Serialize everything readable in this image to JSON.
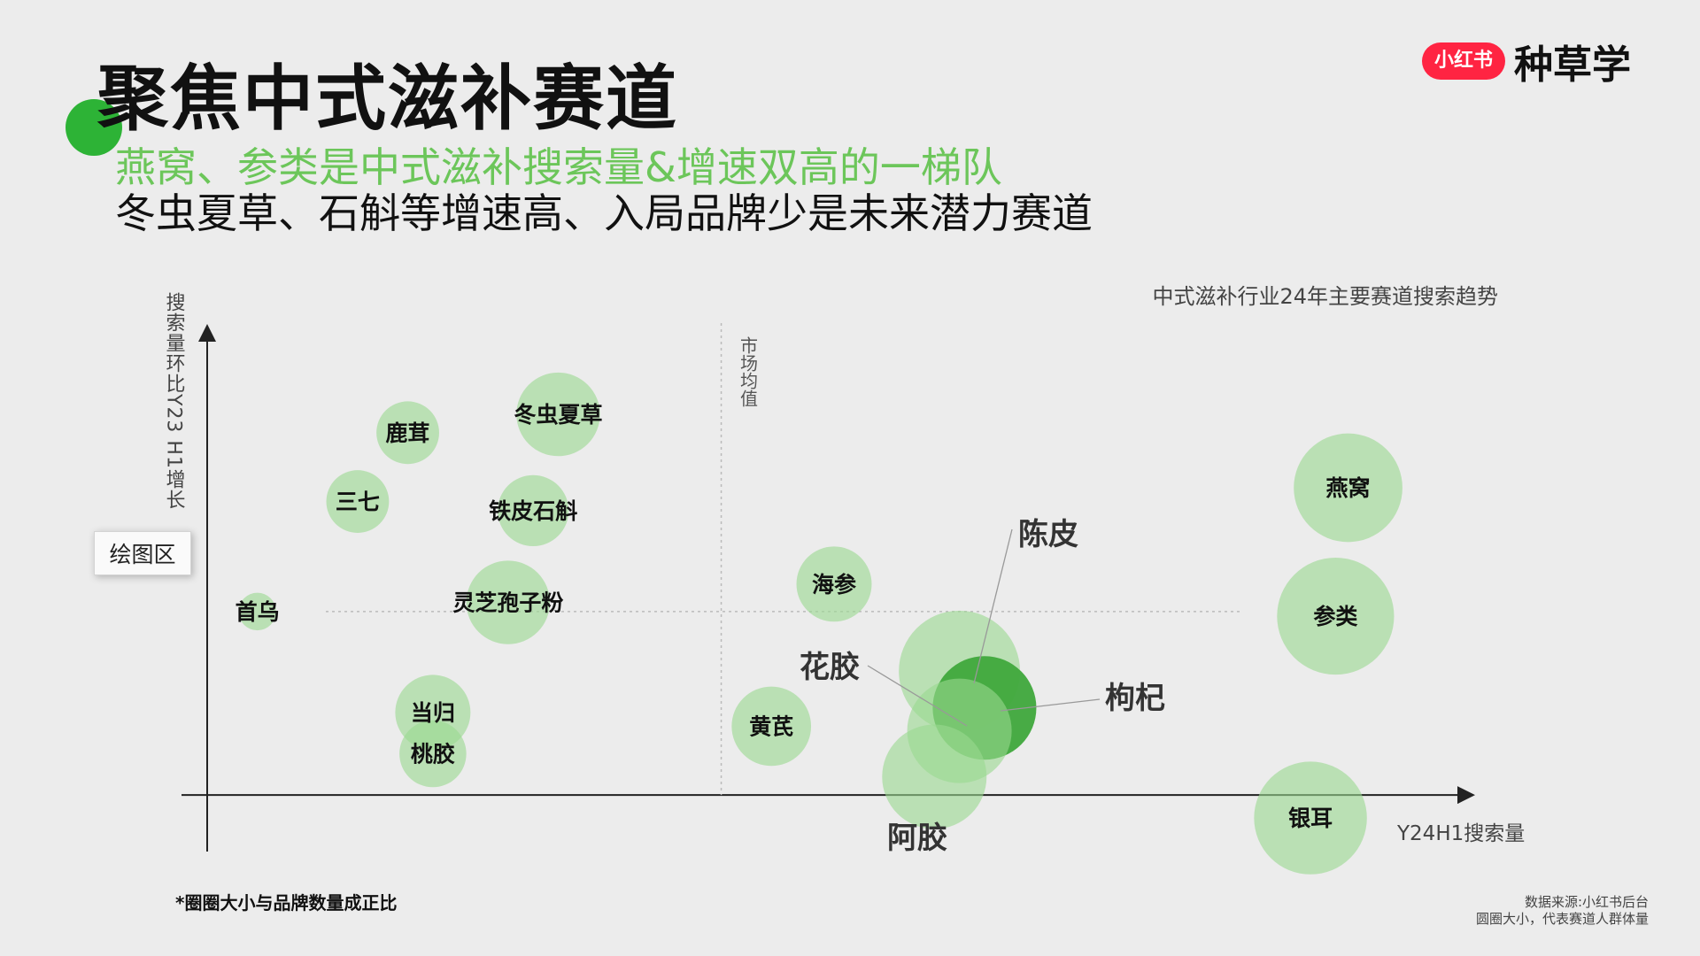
{
  "header": {
    "title": "聚焦中式滋补赛道",
    "subtitle_green": "燕窝、参类是中式滋补搜索量&增速双高的一梯队",
    "subtitle_black": "冬虫夏草、石斛等增速高、入局品牌少是未来潜力赛道"
  },
  "logo": {
    "badge": "小红书",
    "text": "种草学"
  },
  "plot_area_label": "绘图区",
  "footnote": "*圈圈大小与品牌数量成正比",
  "source_lines": [
    "数据来源:小红书后台",
    "圆圈大小，代表赛道人群体量"
  ],
  "colors": {
    "accent": "#2db336",
    "bubble": "#9ad98f",
    "bubble_dark": "#3fa83c",
    "axis": "#222222"
  },
  "chart_data": {
    "type": "scatter",
    "title": "中式滋补行业24年主要赛道搜索趋势",
    "xlabel": "Y24H1搜索量",
    "ylabel": "搜索量环比Y23 H1增长",
    "reference_line_label": "市场均值",
    "grid": false,
    "xlim": [
      0,
      100
    ],
    "ylim": [
      -10,
      100
    ],
    "ref_x": 41,
    "ref_y": 40,
    "points": [
      {
        "label": "鹿茸",
        "x": 16,
        "y": 79,
        "size": 30
      },
      {
        "label": "冬虫夏草",
        "x": 28,
        "y": 83,
        "size": 40
      },
      {
        "label": "三七",
        "x": 12,
        "y": 64,
        "size": 30
      },
      {
        "label": "铁皮石斛",
        "x": 26,
        "y": 62,
        "size": 34
      },
      {
        "label": "灵芝孢子粉",
        "x": 24,
        "y": 42,
        "size": 40
      },
      {
        "label": "首乌",
        "x": 4,
        "y": 40,
        "size": 18
      },
      {
        "label": "当归",
        "x": 18,
        "y": 18,
        "size": 36
      },
      {
        "label": "桃胶",
        "x": 18,
        "y": 9,
        "size": 32
      },
      {
        "label": "海参",
        "x": 50,
        "y": 46,
        "size": 36
      },
      {
        "label": "黄芪",
        "x": 45,
        "y": 15,
        "size": 38
      },
      {
        "label": "陈皮",
        "x": 60,
        "y": 27,
        "size": 58
      },
      {
        "label": "枸杞",
        "x": 62,
        "y": 19,
        "size": 62
      },
      {
        "label": "花胶",
        "x": 60,
        "y": 14,
        "size": 50
      },
      {
        "label": "阿胶",
        "x": 58,
        "y": 4,
        "size": 50
      },
      {
        "label": "燕窝",
        "x": 91,
        "y": 67,
        "size": 52
      },
      {
        "label": "参类",
        "x": 90,
        "y": 39,
        "size": 56
      },
      {
        "label": "银耳",
        "x": 88,
        "y": -5,
        "size": 54
      }
    ]
  }
}
